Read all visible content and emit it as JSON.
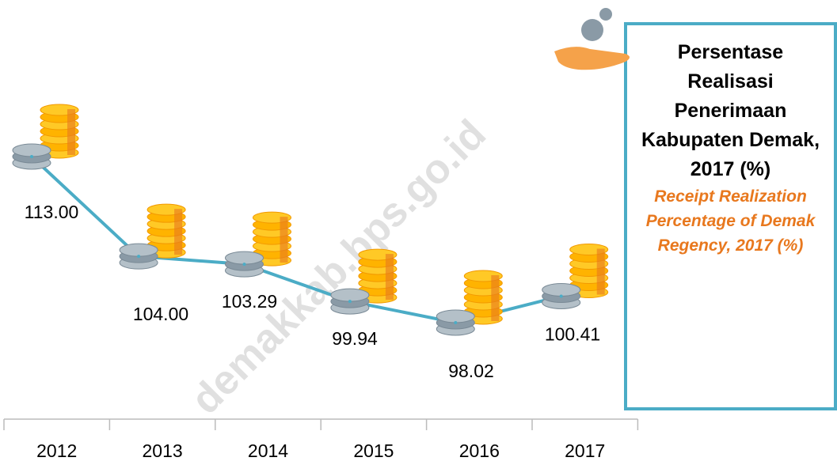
{
  "chart_data": {
    "type": "line",
    "title": "Persentase Realisasi Penerimaan Kabupaten Demak, 2017 (%)",
    "subtitle": "Receipt Realization Percentage of Demak Regency, 2017 (%)",
    "watermark": "demakkab.bps.go.id",
    "categories": [
      "2012",
      "2013",
      "2014",
      "2015",
      "2016",
      "2017"
    ],
    "values": [
      113.0,
      104.0,
      103.29,
      99.94,
      98.02,
      100.41
    ],
    "value_labels": [
      "113.00",
      "104.00",
      "103.29",
      "99.94",
      "98.02",
      "100.41"
    ],
    "color": "#4bacc6"
  }
}
